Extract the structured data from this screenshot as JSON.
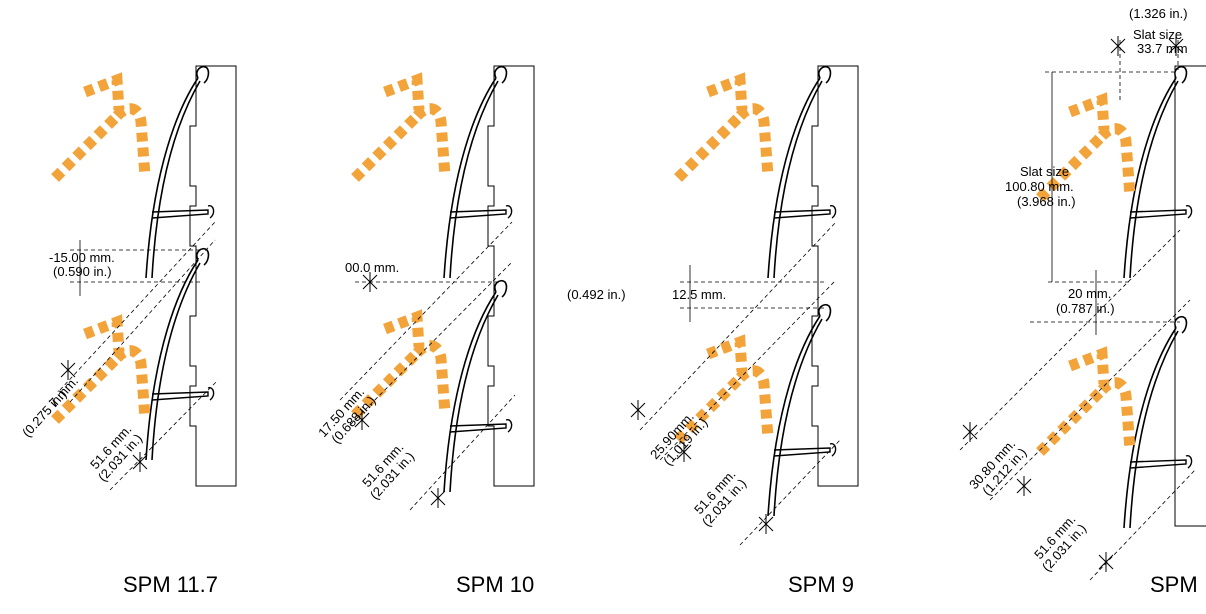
{
  "panels": [
    {
      "caption": "SPM 11.7",
      "gap_label": [
        "-15.00 mm.",
        "(0.590 in.)"
      ],
      "pitch_label": [
        "7 mm.",
        "(0.275 in.)"
      ],
      "slat_label": [
        "51.6 mm.",
        "(2.031 in.)"
      ]
    },
    {
      "caption": "SPM 10",
      "gap_label": [
        "00.0 mm."
      ],
      "pitch_label": [
        "17.50 mm.",
        "(0.688 in.)"
      ],
      "slat_label": [
        "51.6 mm.",
        "(2.031 in.)"
      ]
    },
    {
      "caption": "SPM 9",
      "gap_label": [
        "(0.492 in.)",
        "12.5 mm."
      ],
      "pitch_label": [
        "25.90mm.",
        "(1.019 in.)"
      ],
      "slat_label": [
        "51.6 mm.",
        "(2.031 in.)"
      ]
    },
    {
      "caption": "SPM",
      "slat_size_top": [
        "(1.326 in.)",
        "Slat size",
        "33.7 mm"
      ],
      "slat_size_mid": [
        "Slat size",
        "100.80 mm.",
        "(3.968 in.)"
      ],
      "gap_label": [
        "20 mm.",
        "(0.787 in.)"
      ],
      "pitch_label": [
        "30.80 mm.",
        "(1.212 in.)"
      ],
      "slat_label": [
        "51.6 mm.",
        "(2.031 in.)"
      ]
    }
  ],
  "colors": {
    "arrow": "#f2a33a",
    "line": "#000000"
  }
}
